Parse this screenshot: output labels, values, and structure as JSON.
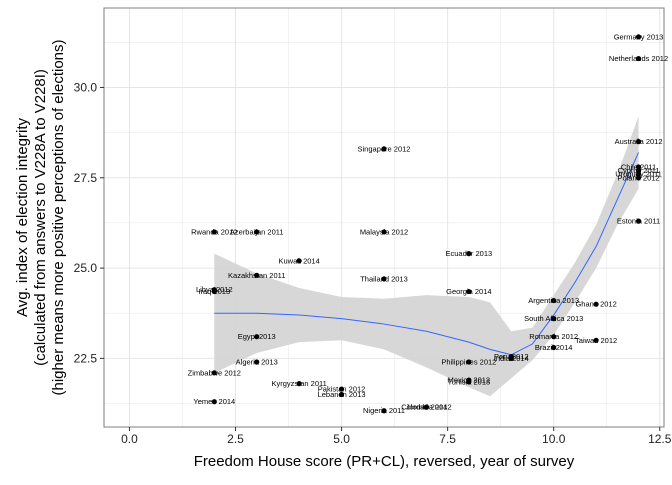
{
  "chart_data": {
    "type": "scatter",
    "xlabel": "Freedom House score (PR+CL), reversed, year of survey",
    "ylabel_lines": [
      "Avg. index of election integrity",
      "(calculated from answers to V228A to V228I)",
      "(higher means more positive perceptions of elections)"
    ],
    "xlim": [
      -0.6,
      12.6
    ],
    "ylim": [
      20.6,
      32.2
    ],
    "x_ticks": [
      0,
      2.5,
      5,
      7.5,
      10,
      12.5
    ],
    "x_tick_labels": [
      "0.0",
      "2.5",
      "5.0",
      "7.5",
      "10.0",
      "12.5"
    ],
    "y_ticks": [
      22.5,
      25,
      27.5,
      30
    ],
    "y_tick_labels": [
      "22.5",
      "25.0",
      "27.5",
      "30.0"
    ],
    "grid": true,
    "points": [
      {
        "label": "Germany 2013",
        "x": 12,
        "y": 31.4
      },
      {
        "label": "Netherlands 2012",
        "x": 12,
        "y": 30.8
      },
      {
        "label": "Australia 2012",
        "x": 12,
        "y": 28.5
      },
      {
        "label": "Chile 2011",
        "x": 12,
        "y": 27.8
      },
      {
        "label": "Cyprus 2011",
        "x": 12,
        "y": 27.7
      },
      {
        "label": "Uruguay 2011",
        "x": 12,
        "y": 27.6
      },
      {
        "label": "Poland 2012",
        "x": 12,
        "y": 27.5
      },
      {
        "label": "Estonia 2011",
        "x": 12,
        "y": 26.3
      },
      {
        "label": "Singapore 2012",
        "x": 6,
        "y": 28.3
      },
      {
        "label": "Rwanda 2012",
        "x": 2,
        "y": 26.0
      },
      {
        "label": "Azerbaijan 2011",
        "x": 3,
        "y": 26.0
      },
      {
        "label": "Malaysia 2012",
        "x": 6,
        "y": 26.0
      },
      {
        "label": "Kuwait 2014",
        "x": 4,
        "y": 25.2
      },
      {
        "label": "Ecuador 2013",
        "x": 8,
        "y": 25.4
      },
      {
        "label": "Kazakhstan 2011",
        "x": 3,
        "y": 24.8
      },
      {
        "label": "Thailand 2013",
        "x": 6,
        "y": 24.7
      },
      {
        "label": "Libya 2012",
        "x": 2,
        "y": 24.4
      },
      {
        "label": "Iraq 2013",
        "x": 2,
        "y": 24.35
      },
      {
        "label": "Georgia 2014",
        "x": 8,
        "y": 24.35
      },
      {
        "label": "Argentina 2013",
        "x": 10,
        "y": 24.1
      },
      {
        "label": "Ghana 2012",
        "x": 11,
        "y": 24.0
      },
      {
        "label": "South Africa 2013",
        "x": 10,
        "y": 23.6
      },
      {
        "label": "Egypt 2013",
        "x": 3,
        "y": 23.1
      },
      {
        "label": "Romania 2012",
        "x": 10,
        "y": 23.1
      },
      {
        "label": "Taiwan 2012",
        "x": 11,
        "y": 23.0
      },
      {
        "label": "Brazil 2014",
        "x": 10,
        "y": 22.8
      },
      {
        "label": "India 2014",
        "x": 9,
        "y": 22.5
      },
      {
        "label": "Peru 2012",
        "x": 9,
        "y": 22.55
      },
      {
        "label": "Philippines 2012",
        "x": 8,
        "y": 22.4
      },
      {
        "label": "Algeria 2013",
        "x": 3,
        "y": 22.4
      },
      {
        "label": "Zimbabwe 2012",
        "x": 2,
        "y": 22.1
      },
      {
        "label": "Mexico 2012",
        "x": 8,
        "y": 21.9
      },
      {
        "label": "Tunisia 2013",
        "x": 8,
        "y": 21.85
      },
      {
        "label": "Kyrgyzstan 2011",
        "x": 4,
        "y": 21.8
      },
      {
        "label": "Pakistan 2012",
        "x": 5,
        "y": 21.65
      },
      {
        "label": "Lebanon 2013",
        "x": 5,
        "y": 21.5
      },
      {
        "label": "Yemen 2014",
        "x": 2,
        "y": 21.3
      },
      {
        "label": "Colombia 2012",
        "x": 7,
        "y": 21.15
      },
      {
        "label": "Jordan 2014",
        "x": 7,
        "y": 21.15
      },
      {
        "label": "Nigeria 2011",
        "x": 6,
        "y": 21.05
      }
    ],
    "smooth": {
      "x": [
        2,
        3,
        4,
        5,
        6,
        7,
        8,
        8.5,
        9,
        9.5,
        10,
        10.5,
        11,
        11.5,
        12
      ],
      "fit": [
        23.75,
        23.75,
        23.7,
        23.6,
        23.45,
        23.25,
        22.95,
        22.75,
        22.6,
        22.9,
        23.7,
        24.6,
        25.6,
        26.9,
        28.2
      ],
      "lower": [
        22.1,
        22.65,
        22.95,
        23.0,
        22.75,
        22.25,
        21.7,
        21.45,
        21.95,
        22.45,
        23.15,
        24.05,
        25.0,
        26.2,
        27.2
      ],
      "upper": [
        25.4,
        24.85,
        24.45,
        24.2,
        24.15,
        24.25,
        24.2,
        24.05,
        23.25,
        23.35,
        24.25,
        25.15,
        26.2,
        27.6,
        29.2
      ]
    },
    "colors": {
      "panel_background": "#ffffff",
      "grid": "#e6e6e6",
      "panel_border": "#7f7f7f",
      "ribbon": "#d3d3d3",
      "smooth_line": "#3366ff",
      "point": "#000000"
    }
  }
}
